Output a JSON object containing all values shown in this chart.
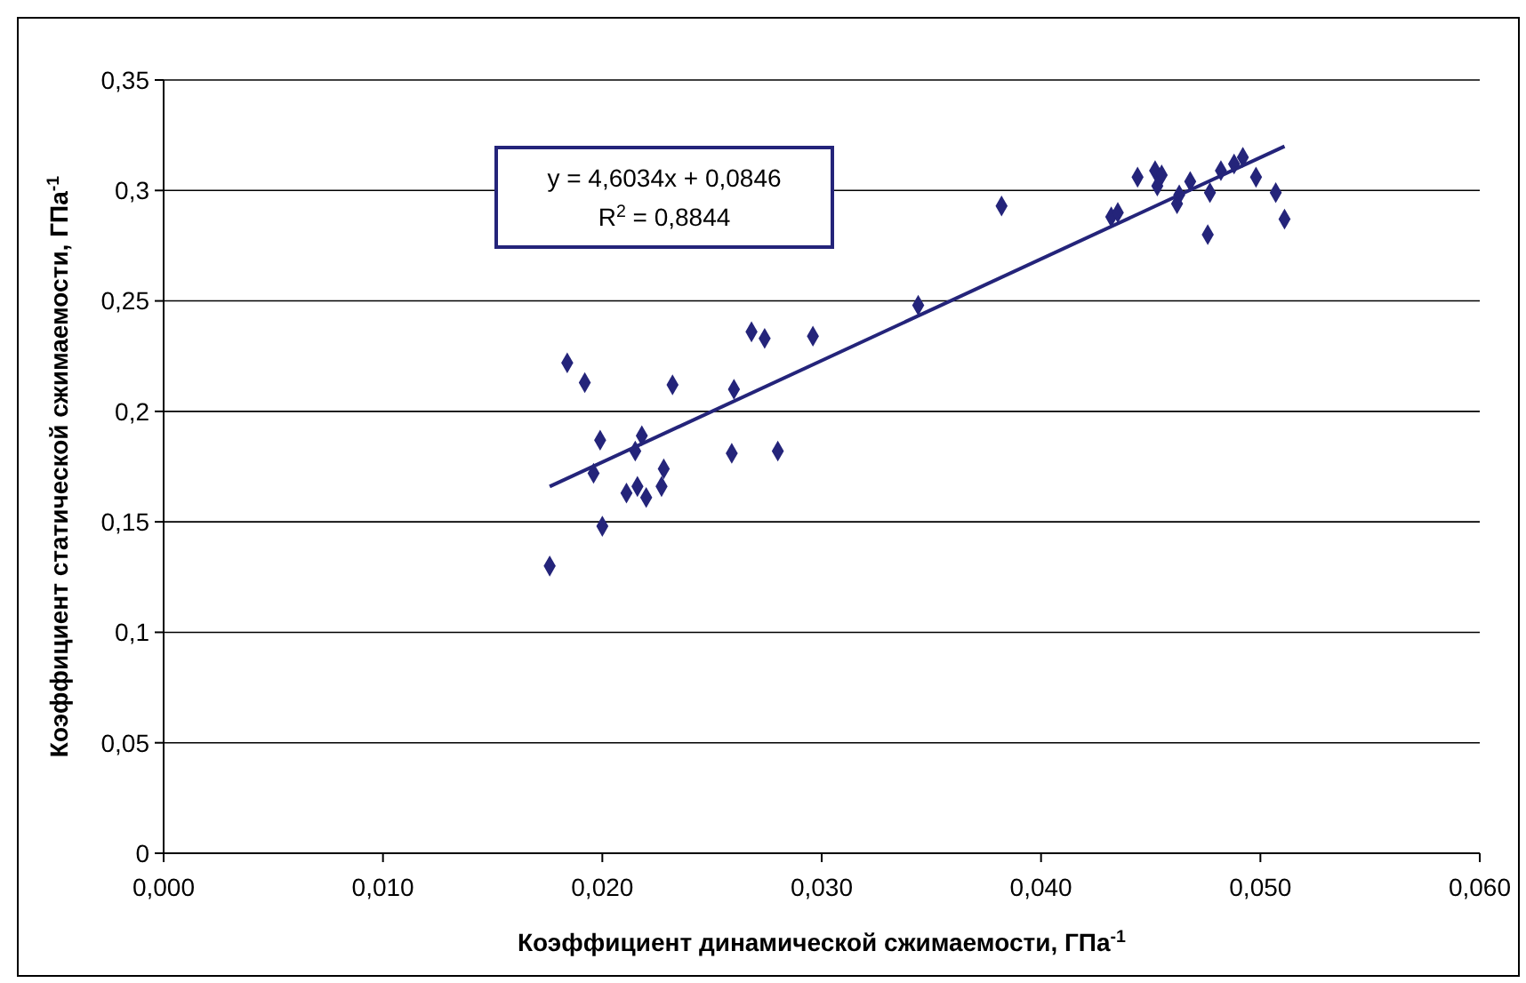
{
  "chart_data": {
    "type": "scatter",
    "xlabel": "Коэффициент динамической сжимаемости, ГПа$^{-1}$",
    "ylabel": "Коэффициент статической сжимаемости, ГПа$^{-1}$",
    "xlim": [
      0,
      0.06
    ],
    "xticks": [
      {
        "value": 0,
        "label": "0,000"
      },
      {
        "value": 0.01,
        "label": "0,010"
      },
      {
        "value": 0.02,
        "label": "0,020"
      },
      {
        "value": 0.03,
        "label": "0,030"
      },
      {
        "value": 0.04,
        "label": "0,040"
      },
      {
        "value": 0.05,
        "label": "0,050"
      },
      {
        "value": 0.06,
        "label": "0,060"
      }
    ],
    "ylim": [
      0,
      0.35
    ],
    "yticks": [
      {
        "value": 0,
        "label": "0"
      },
      {
        "value": 0.05,
        "label": "0,05"
      },
      {
        "value": 0.1,
        "label": "0,1"
      },
      {
        "value": 0.15,
        "label": "0,15"
      },
      {
        "value": 0.2,
        "label": "0,2"
      },
      {
        "value": 0.25,
        "label": "0,25"
      },
      {
        "value": 0.3,
        "label": "0,3"
      },
      {
        "value": 0.35,
        "label": "0,35"
      }
    ],
    "grid": "y",
    "marker": "diamond",
    "annotations": [
      "y = 4,6034x + 0,0846",
      "R$^{2}$ = 0,8844"
    ],
    "series": [
      {
        "color": "#24247a",
        "x": [
          0.0184,
          0.0192,
          0.0199,
          0.0176,
          0.02,
          0.0196,
          0.0218,
          0.0215,
          0.0211,
          0.0216,
          0.022,
          0.0228,
          0.0227,
          0.0232,
          0.026,
          0.0259,
          0.028,
          0.0268,
          0.0274,
          0.0296,
          0.0344,
          0.0382,
          0.0432,
          0.0435,
          0.0444,
          0.0452,
          0.0455,
          0.0453,
          0.0462,
          0.0463,
          0.0468,
          0.0477,
          0.0476,
          0.0482,
          0.0488,
          0.0492,
          0.0498,
          0.0507,
          0.0511
        ],
        "values": [
          0.222,
          0.213,
          0.187,
          0.13,
          0.148,
          0.172,
          0.189,
          0.182,
          0.163,
          0.166,
          0.161,
          0.174,
          0.166,
          0.212,
          0.21,
          0.181,
          0.182,
          0.236,
          0.233,
          0.234,
          0.248,
          0.293,
          0.288,
          0.29,
          0.306,
          0.309,
          0.307,
          0.302,
          0.294,
          0.298,
          0.304,
          0.299,
          0.28,
          0.309,
          0.312,
          0.315,
          0.306,
          0.299,
          0.287
        ]
      },
      {
        "type": "line",
        "color": "#24247a",
        "marker": "none",
        "x": [
          0.0176,
          0.0511
        ],
        "values": [
          0.166,
          0.32
        ]
      }
    ]
  }
}
